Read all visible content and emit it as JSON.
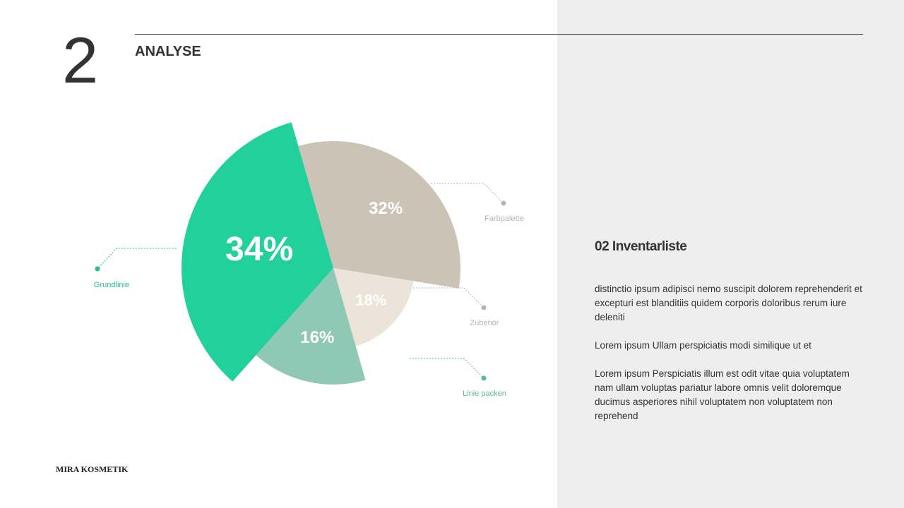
{
  "slide_number": "2",
  "section_title": "ANALYSE",
  "brand": "MIRA KOSMETIK",
  "panel": {
    "title": "02 Inventarliste",
    "paragraphs": [
      "distinctio ipsum adipisci nemo suscipit dolorem reprehenderit et excepturi est blanditiis quidem corporis doloribus rerum iure deleniti",
      "Lorem ipsum Ullam perspiciatis modi similique ut et",
      "Lorem ipsum Perspiciatis illum est odit vitae quia voluptatem nam ullam voluptas pariatur labore omnis velit doloremque ducimus asperiores nihil voluptatem non voluptatem non reprehend"
    ]
  },
  "chart_data": {
    "type": "pie",
    "categories": [
      "Farbpalette",
      "Zubehör",
      "Linie packen",
      "Grundlinie"
    ],
    "values": [
      32,
      18,
      16,
      34
    ],
    "value_labels": [
      "32%",
      "18%",
      "16%",
      "34%"
    ],
    "colors": [
      "#cbc3b5",
      "#ece4d9",
      "#8fc8b5",
      "#22d09b"
    ]
  }
}
